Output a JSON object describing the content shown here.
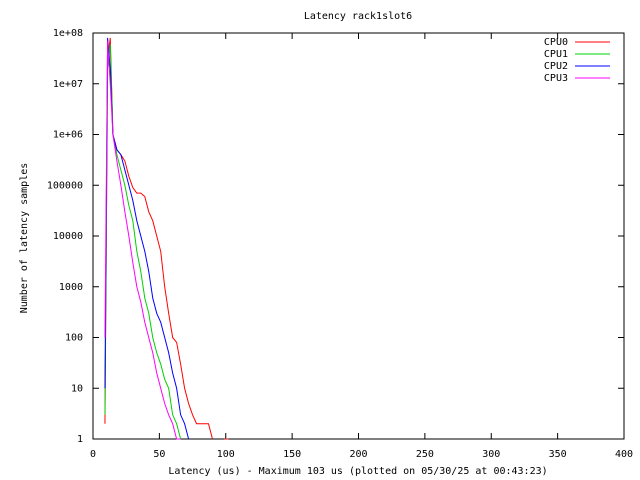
{
  "chart_data": {
    "type": "line",
    "title": "Latency rack1slot6",
    "x_label": "Latency (us) - Maximum 103 us (plotted on 05/30/25 at 00:43:23)",
    "y_label": "Number of latency samples",
    "x": [
      9,
      11,
      13,
      15,
      18,
      21,
      24,
      27,
      30,
      33,
      36,
      39,
      42,
      45,
      48,
      51,
      54,
      57,
      60,
      63,
      66,
      69,
      72,
      75,
      78,
      81,
      84,
      87,
      90,
      93,
      96,
      99,
      102
    ],
    "series": [
      {
        "name": "CPU0",
        "color": "#ff0000",
        "values": [
          2,
          30000000,
          80000000,
          1000000,
          500000,
          400000,
          300000,
          150000,
          90000,
          70000,
          70000,
          60000,
          30000,
          20000,
          10000,
          5000,
          1000,
          300,
          100,
          80,
          30,
          10,
          5,
          3,
          2,
          2,
          2,
          2,
          1,
          null,
          null,
          1,
          1
        ]
      },
      {
        "name": "CPU1",
        "color": "#00d000",
        "values": [
          3,
          20000000,
          60000000,
          1000000,
          400000,
          200000,
          100000,
          40000,
          20000,
          5000,
          2000,
          600,
          300,
          100,
          50,
          30,
          15,
          10,
          3,
          2,
          1,
          null,
          null,
          null,
          null,
          null,
          null,
          null,
          null,
          null,
          null,
          null,
          null
        ]
      },
      {
        "name": "CPU2",
        "color": "#0000ff",
        "values": [
          10,
          80000000,
          20000000,
          1000000,
          500000,
          400000,
          200000,
          100000,
          50000,
          20000,
          10000,
          5000,
          2000,
          600,
          300,
          200,
          100,
          50,
          20,
          10,
          3,
          2,
          1,
          null,
          null,
          null,
          null,
          null,
          null,
          null,
          null,
          null,
          null
        ]
      },
      {
        "name": "CPU3",
        "color": "#ff00ff",
        "values": [
          100,
          70000000,
          10000000,
          1000000,
          300000,
          100000,
          30000,
          10000,
          3000,
          1000,
          500,
          200,
          100,
          50,
          20,
          10,
          5,
          3,
          2,
          1,
          1,
          null,
          null,
          null,
          null,
          null,
          null,
          null,
          null,
          null,
          null,
          null,
          null
        ]
      }
    ],
    "xlim": [
      0,
      400
    ],
    "xticks": [
      0,
      50,
      100,
      150,
      200,
      250,
      300,
      350,
      400
    ],
    "ylim": [
      1,
      100000000
    ],
    "yticks": [
      1,
      10,
      100,
      1000,
      10000,
      100000,
      {
        "value": 1000000,
        "label": "1e+06"
      },
      {
        "value": 10000000,
        "label": "1e+07"
      },
      {
        "value": 100000000,
        "label": "1e+08"
      }
    ],
    "y_log": true,
    "grid": false,
    "legend": "top-right"
  }
}
